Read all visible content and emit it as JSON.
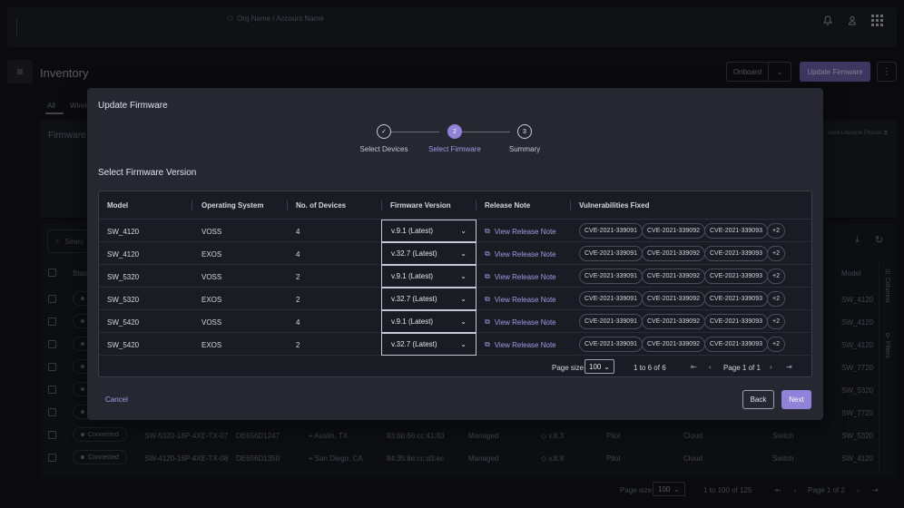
{
  "header": {
    "org": "Org Name / Account Name",
    "icons": [
      "bell-icon",
      "user-icon",
      "apps-grid-icon"
    ]
  },
  "inventory": {
    "title": "Inventory",
    "tabs": [
      "All",
      "Wirele"
    ],
    "firmware_label": "Firmware",
    "lifecycle_link": "ware Lifecycle Phases",
    "onboard_label": "Onboard",
    "update_firmware_label": "Update Firmware",
    "search_placeholder": "Searc",
    "status_header": "Statu",
    "model_header": "Model",
    "columns_label": "Columns",
    "filters_label": "Filters",
    "rows": [
      {
        "status": "C",
        "model": "SW_4120"
      },
      {
        "status": "C",
        "model": "SW_4120"
      },
      {
        "status": "C",
        "model": "SW_4120"
      },
      {
        "status": "C",
        "model": "SW_7720"
      },
      {
        "status": "C",
        "model": "SW_5320"
      },
      {
        "status": "C",
        "model": "SW_7720"
      },
      {
        "status": "Connected",
        "device": "SW-5320-16P-4XE-TX-07",
        "serial": "DE656D1247",
        "location": "Austin, TX",
        "mac": "93:6b:66:cc:41:83",
        "mgmt": "Managed",
        "fw": "v.8.3",
        "phase": "Pilot",
        "type": "Cloud",
        "kind": "Switch",
        "model": "SW_5320"
      },
      {
        "status": "Connected",
        "device": "SW-4120-16P-4XE-TX-08",
        "serial": "DE656D1350",
        "location": "San Diego, CA",
        "mac": "84:35:8e:cc:d3:ec",
        "mgmt": "Managed",
        "fw": "v.8.8",
        "phase": "Pilot",
        "type": "Cloud",
        "kind": "Switch",
        "model": "SW_4120"
      }
    ],
    "pager": {
      "page_size_label": "Page size",
      "page_size": "100",
      "range_from": "1",
      "range_to": "100",
      "of_word": "to",
      "total_word": "of",
      "total": "125",
      "page_word": "Page",
      "page": "1",
      "page_of": "of",
      "pages": "2"
    }
  },
  "modal": {
    "title": "Update Firmware",
    "steps": [
      {
        "num": "",
        "label": "Select Devices",
        "state": "done"
      },
      {
        "num": "2",
        "label": "Select Firmware",
        "state": "active"
      },
      {
        "num": "3",
        "label": "Summary",
        "state": "todo"
      }
    ],
    "section_title": "Select Firmware Version",
    "columns": [
      "Model",
      "Operating System",
      "No. of Devices",
      "Firmware Version",
      "Release Note",
      "Vulnerabilities Fixed"
    ],
    "release_note_label": "View Release Note",
    "rows": [
      {
        "model": "SW_4120",
        "os": "VOSS",
        "devices": "4",
        "firmware": "v.9.1 (Latest)",
        "cves": [
          "CVE-2021-339091",
          "CVE-2021-339092",
          "CVE-2021-339093"
        ],
        "more": "+2"
      },
      {
        "model": "SW_4120",
        "os": "EXOS",
        "devices": "4",
        "firmware": "v.32.7 (Latest)",
        "cves": [
          "CVE-2021-339091",
          "CVE-2021-339092",
          "CVE-2021-339093"
        ],
        "more": "+2"
      },
      {
        "model": "SW_5320",
        "os": "VOSS",
        "devices": "2",
        "firmware": "v.9.1 (Latest)",
        "cves": [
          "CVE-2021-339091",
          "CVE-2021-339092",
          "CVE-2021-339093"
        ],
        "more": "+2"
      },
      {
        "model": "SW_5320",
        "os": "EXOS",
        "devices": "2",
        "firmware": "v.32.7 (Latest)",
        "cves": [
          "CVE-2021-339091",
          "CVE-2021-339092",
          "CVE-2021-339093"
        ],
        "more": "+2"
      },
      {
        "model": "SW_5420",
        "os": "VOSS",
        "devices": "4",
        "firmware": "v.9.1 (Latest)",
        "cves": [
          "CVE-2021-339091",
          "CVE-2021-339092",
          "CVE-2021-339093"
        ],
        "more": "+2"
      },
      {
        "model": "SW_5420",
        "os": "EXOS",
        "devices": "2",
        "firmware": "v.32.7 (Latest)",
        "cves": [
          "CVE-2021-339091",
          "CVE-2021-339092",
          "CVE-2021-339093"
        ],
        "more": "+2"
      }
    ],
    "pager": {
      "page_size_label": "Page size",
      "page_size": "100",
      "range_from": "1",
      "to_word": "to",
      "range_to": "6",
      "of_word": "of",
      "total": "6",
      "page_word": "Page",
      "page": "1",
      "page_of": "of",
      "pages": "1"
    },
    "cancel_label": "Cancel",
    "back_label": "Back",
    "next_label": "Next"
  },
  "colors": {
    "accent": "#8f82d8",
    "modal_bg": "#262731",
    "page_bg": "#0d0e12"
  }
}
